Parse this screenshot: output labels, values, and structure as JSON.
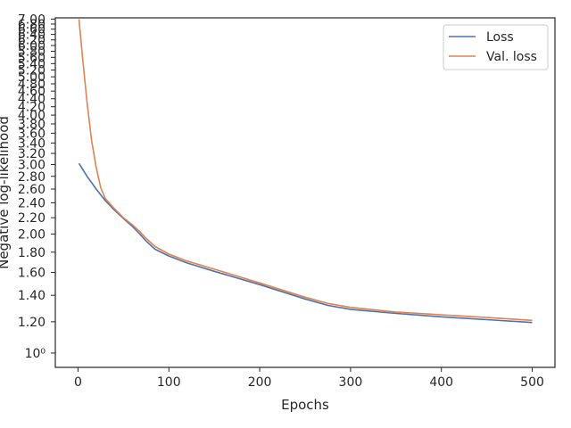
{
  "chart_data": {
    "type": "line",
    "xlabel": "Epochs",
    "ylabel": "Negative log-likelihood",
    "xlim": [
      -25,
      525
    ],
    "ylim": [
      0.92,
      7.05
    ],
    "yscale": "log",
    "grid": false,
    "legend_position": "top-right",
    "x_ticks": [
      0,
      100,
      200,
      300,
      400,
      500
    ],
    "x_tick_labels": [
      "0",
      "100",
      "200",
      "300",
      "400",
      "500"
    ],
    "y_ticks": [
      1.0,
      1.2,
      1.4,
      1.6,
      1.8,
      2.0,
      2.2,
      2.4,
      2.6,
      2.8,
      3.0,
      3.2,
      3.4,
      3.6,
      3.8,
      4.0,
      4.2,
      4.4,
      4.6,
      4.8,
      5.0,
      5.2,
      5.4,
      5.6,
      5.8,
      6.0,
      6.2,
      6.4,
      6.6,
      6.8,
      7.0
    ],
    "y_tick_labels": [
      "10⁰",
      "1.20",
      "1.40",
      "1.60",
      "1.80",
      "2.00",
      "2.20",
      "2.40",
      "2.60",
      "2.80",
      "3.00",
      "3.20",
      "3.40",
      "3.60",
      "3.80",
      "4.00",
      "4.20",
      "4.40",
      "4.60",
      "4.80",
      "5.00",
      "5.20",
      "5.40",
      "5.60",
      "5.80",
      "6.00",
      "6.20",
      "6.40",
      "6.60",
      "6.80",
      "7.00"
    ],
    "series": [
      {
        "name": "Loss",
        "color": "#4c72b0",
        "x": [
          1,
          10,
          20,
          30,
          40,
          50,
          60,
          68,
          75,
          85,
          100,
          120,
          150,
          200,
          250,
          275,
          300,
          350,
          400,
          450,
          500
        ],
        "y": [
          3.02,
          2.8,
          2.6,
          2.43,
          2.3,
          2.19,
          2.09,
          2.0,
          1.92,
          1.83,
          1.76,
          1.69,
          1.61,
          1.49,
          1.37,
          1.32,
          1.29,
          1.26,
          1.235,
          1.215,
          1.195
        ]
      },
      {
        "name": "Val. loss",
        "color": "#dd8452",
        "x": [
          1,
          5,
          10,
          15,
          20,
          25,
          30,
          40,
          50,
          60,
          68,
          75,
          85,
          100,
          120,
          150,
          200,
          250,
          275,
          300,
          350,
          400,
          450,
          500
        ],
        "y": [
          7.0,
          5.6,
          4.3,
          3.45,
          2.95,
          2.62,
          2.46,
          2.32,
          2.2,
          2.11,
          2.03,
          1.95,
          1.86,
          1.78,
          1.71,
          1.63,
          1.505,
          1.385,
          1.335,
          1.305,
          1.27,
          1.25,
          1.23,
          1.21
        ]
      }
    ]
  }
}
